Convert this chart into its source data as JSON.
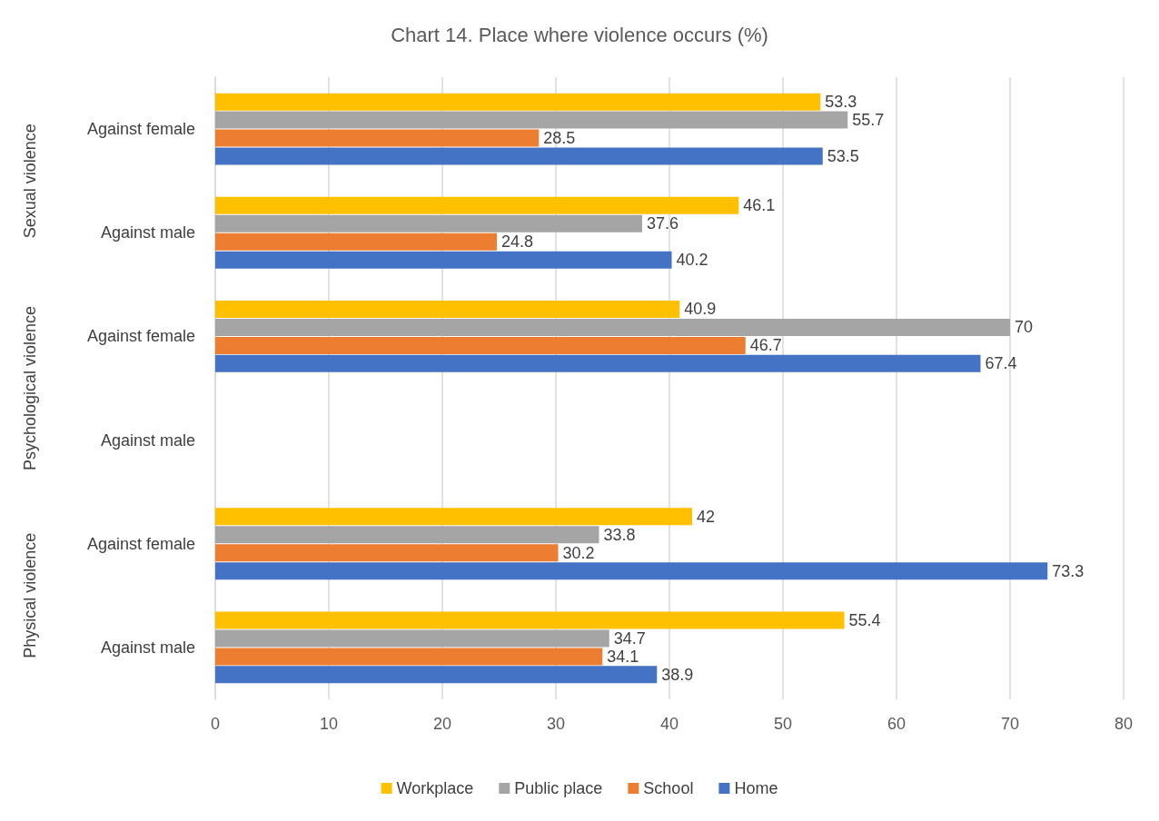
{
  "chart_data": {
    "type": "bar",
    "orientation": "horizontal",
    "title": "Chart 14. Place where violence occurs (%)",
    "categories": [
      "Against female",
      "Against male",
      "Against female",
      "Against male",
      "Against female",
      "Against male"
    ],
    "annotations": [
      "Sexual violence",
      "Psychological violence",
      "Physical violence"
    ],
    "series": [
      {
        "name": "Workplace",
        "color": "#ffc000",
        "values": [
          53.3,
          46.1,
          40.9,
          null,
          42,
          55.4
        ]
      },
      {
        "name": "Public place",
        "color": "#a5a5a5",
        "values": [
          55.7,
          37.6,
          70,
          null,
          33.8,
          34.7
        ]
      },
      {
        "name": "School",
        "color": "#ed7d31",
        "values": [
          28.5,
          24.8,
          46.7,
          null,
          30.2,
          34.1
        ]
      },
      {
        "name": "Home",
        "color": "#4472c4",
        "values": [
          53.5,
          40.2,
          67.4,
          null,
          73.3,
          38.9
        ]
      }
    ],
    "xlim": [
      0,
      80
    ],
    "xticks": [
      0,
      10,
      20,
      30,
      40,
      50,
      60,
      70,
      80
    ],
    "grid": "x",
    "legend": "bottom",
    "data_labels": true
  }
}
